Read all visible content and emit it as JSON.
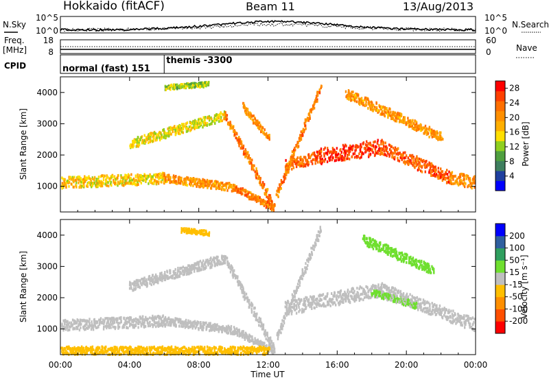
{
  "header": {
    "station": "Hokkaido (fitACF)",
    "beam": "Beam 11",
    "date": "13/Aug/2013"
  },
  "summary": {
    "nsky_label": "N.Sky",
    "nsearch_label": "N.Search",
    "nsky_ticks": [
      "10^5",
      "10^0"
    ],
    "freq_label_1": "Freq.",
    "freq_label_2": "[MHz]",
    "freq_ticks": [
      "18",
      "8"
    ],
    "nave_label": "Nave",
    "nave_ticks": [
      "60",
      "0"
    ],
    "cpid_label": "CPID",
    "cpid_segments": [
      {
        "label": "normal (fast) 151",
        "start_hour": 0,
        "end_hour": 6.0
      },
      {
        "label": "themis -3300",
        "start_hour": 6.0,
        "end_hour": 24
      }
    ]
  },
  "colors": {
    "power_scale": [
      "#0000ff",
      "#1f3f9f",
      "#3f7f5f",
      "#4f9f3f",
      "#8fcf1f",
      "#ffdf00",
      "#ffaf00",
      "#ff8f00",
      "#ff6f00",
      "#ff3f00",
      "#ff0000"
    ],
    "velocity_scale": [
      "#ff0000",
      "#ff4f00",
      "#ff8f00",
      "#ffbf00",
      "#bfbfbf",
      "#6fdf2f",
      "#2f9f5f",
      "#2f5f9f",
      "#0000ff"
    ],
    "ground_scatter": "#bfbfbf"
  },
  "chart_data": [
    {
      "type": "heatmap",
      "title": "",
      "xlabel": "Time UT",
      "ylabel": "Slant Range [km]",
      "xlim": [
        "00:00",
        "24:00"
      ],
      "ylim": [
        180,
        4500
      ],
      "x_ticks": [
        "00:00",
        "04:00",
        "08:00",
        "12:00",
        "16:00",
        "20:00",
        "00:00"
      ],
      "y_ticks": [
        "1000",
        "2000",
        "3000",
        "4000"
      ],
      "colorbar": {
        "label": "Power [dB]",
        "ticks": [
          "4",
          "8",
          "12",
          "16",
          "20",
          "24",
          "28"
        ],
        "range": [
          0,
          30
        ]
      },
      "echo_bands": [
        {
          "start": [
            0,
            1150
          ],
          "end": [
            6,
            1300
          ],
          "width_km": 350,
          "level": 16
        },
        {
          "start": [
            6,
            1300
          ],
          "end": [
            10,
            1000
          ],
          "width_km": 250,
          "level": 20
        },
        {
          "start": [
            10,
            1000
          ],
          "end": [
            12.3,
            350
          ],
          "width_km": 220,
          "level": 22
        },
        {
          "start": [
            4,
            2400
          ],
          "end": [
            9.5,
            3300
          ],
          "width_km": 300,
          "level": 15
        },
        {
          "start": [
            9.5,
            3300
          ],
          "end": [
            12.3,
            400
          ],
          "width_km": 250,
          "level": 22
        },
        {
          "start": [
            13,
            1700
          ],
          "end": [
            15,
            2000
          ],
          "width_km": 350,
          "level": 24
        },
        {
          "start": [
            15,
            2000
          ],
          "end": [
            18.5,
            2300
          ],
          "width_km": 500,
          "level": 26
        },
        {
          "start": [
            18.5,
            2300
          ],
          "end": [
            22.5,
            1300
          ],
          "width_km": 400,
          "level": 24
        },
        {
          "start": [
            22.5,
            1300
          ],
          "end": [
            24,
            1150
          ],
          "width_km": 400,
          "level": 20
        },
        {
          "start": [
            12.5,
            800
          ],
          "end": [
            15,
            4200
          ],
          "width_km": 220,
          "level": 22
        },
        {
          "start": [
            16.5,
            4000
          ],
          "end": [
            22,
            2600
          ],
          "width_km": 300,
          "level": 20
        },
        {
          "start": [
            6,
            4200
          ],
          "end": [
            8.5,
            4300
          ],
          "width_km": 150,
          "level": 12
        },
        {
          "start": [
            10.5,
            3600
          ],
          "end": [
            12,
            2600
          ],
          "width_km": 200,
          "level": 20
        }
      ]
    },
    {
      "type": "heatmap",
      "title": "",
      "xlabel": "Time UT",
      "ylabel": "Slant Range [km]",
      "xlim": [
        "00:00",
        "24:00"
      ],
      "ylim": [
        180,
        4500
      ],
      "x_ticks": [
        "00:00",
        "04:00",
        "08:00",
        "12:00",
        "16:00",
        "20:00",
        "00:00"
      ],
      "y_ticks": [
        "1000",
        "2000",
        "3000",
        "4000"
      ],
      "colorbar": {
        "label": "Velocity [m s⁻¹]",
        "ticks": [
          "200",
          "100",
          "50",
          "15",
          "-15",
          "-50",
          "-100",
          "-200"
        ],
        "range": [
          -300,
          300
        ]
      },
      "echo_bands": [
        {
          "start": [
            0,
            1150
          ],
          "end": [
            6,
            1300
          ],
          "width_km": 350,
          "velocity": 0
        },
        {
          "start": [
            6,
            1300
          ],
          "end": [
            10,
            1000
          ],
          "width_km": 250,
          "velocity": 0
        },
        {
          "start": [
            10,
            1000
          ],
          "end": [
            12.3,
            350
          ],
          "width_km": 220,
          "velocity": 0
        },
        {
          "start": [
            4,
            2400
          ],
          "end": [
            9.5,
            3300
          ],
          "width_km": 300,
          "velocity": 0
        },
        {
          "start": [
            9.5,
            3300
          ],
          "end": [
            12.3,
            400
          ],
          "width_km": 250,
          "velocity": 0
        },
        {
          "start": [
            13,
            1700
          ],
          "end": [
            18.5,
            2300
          ],
          "width_km": 450,
          "velocity": 0
        },
        {
          "start": [
            18.5,
            2300
          ],
          "end": [
            24,
            1150
          ],
          "width_km": 400,
          "velocity": 0
        },
        {
          "start": [
            12.5,
            800
          ],
          "end": [
            15,
            4200
          ],
          "width_km": 220,
          "velocity": 0
        },
        {
          "start": [
            17.5,
            3900
          ],
          "end": [
            21.5,
            2900
          ],
          "width_km": 300,
          "velocity": 60
        },
        {
          "start": [
            18,
            2200
          ],
          "end": [
            20.5,
            1800
          ],
          "width_km": 200,
          "velocity": 40
        },
        {
          "start": [
            7,
            4200
          ],
          "end": [
            8.5,
            4100
          ],
          "width_km": 150,
          "velocity": -60
        },
        {
          "start": [
            0,
            350
          ],
          "end": [
            12,
            350
          ],
          "width_km": 250,
          "velocity": -60
        }
      ]
    }
  ]
}
